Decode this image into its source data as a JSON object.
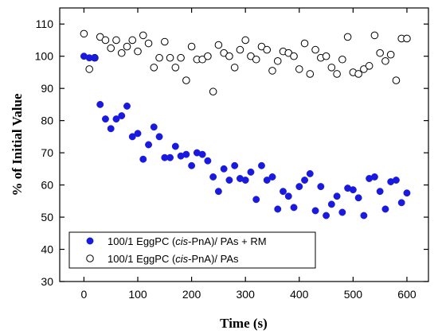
{
  "chart_data": {
    "type": "scatter",
    "xlabel": "Time (s)",
    "ylabel": "% of Initial Value",
    "xlim": [
      -45,
      640
    ],
    "ylim": [
      30,
      115
    ],
    "xticks": [
      0,
      100,
      200,
      300,
      400,
      500,
      600
    ],
    "yticks": [
      30,
      40,
      50,
      60,
      70,
      80,
      90,
      100,
      110
    ],
    "grid": false,
    "legend_position": "bottom-left",
    "series": [
      {
        "name_prefix": "100/1 EggPC (",
        "name_italic": "cis",
        "name_suffix": "-PnA)/ PAs + RM",
        "marker": "filled-circle",
        "color": "#1a1adf",
        "x": [
          0,
          10,
          20,
          30,
          40,
          50,
          60,
          70,
          80,
          90,
          100,
          110,
          120,
          130,
          140,
          150,
          160,
          170,
          180,
          190,
          200,
          210,
          220,
          230,
          240,
          250,
          260,
          270,
          280,
          290,
          300,
          310,
          320,
          330,
          340,
          350,
          360,
          370,
          380,
          390,
          400,
          410,
          420,
          430,
          440,
          450,
          460,
          470,
          480,
          490,
          500,
          510,
          520,
          530,
          540,
          550,
          560,
          570,
          580,
          590,
          600
        ],
        "y": [
          100,
          99.5,
          99.5,
          85,
          80.5,
          77.5,
          80.5,
          81.5,
          84.5,
          75,
          76,
          68,
          72.5,
          78,
          75,
          68.5,
          68.5,
          72,
          69,
          69.5,
          66,
          70,
          69.5,
          67.5,
          62.5,
          58,
          65,
          61.5,
          66,
          62,
          61.5,
          64,
          55.5,
          66,
          61.5,
          62.5,
          52.5,
          58,
          56.5,
          53,
          59.5,
          61.5,
          63.5,
          52,
          59.5,
          50.5,
          54,
          56.5,
          51.5,
          59,
          58.5,
          56,
          50.5,
          62,
          62.5,
          58,
          52.5,
          61,
          61.5,
          54.5,
          57.5
        ]
      },
      {
        "name_prefix": "100/1 EggPC (",
        "name_italic": "cis",
        "name_suffix": "-PnA)/ PAs",
        "marker": "open-circle",
        "color": "#000000",
        "x": [
          0,
          10,
          20,
          30,
          40,
          50,
          60,
          70,
          80,
          90,
          100,
          110,
          120,
          130,
          140,
          150,
          160,
          170,
          180,
          190,
          200,
          210,
          220,
          230,
          240,
          250,
          260,
          270,
          280,
          290,
          300,
          310,
          320,
          330,
          340,
          350,
          360,
          370,
          380,
          390,
          400,
          410,
          420,
          430,
          440,
          450,
          460,
          470,
          480,
          490,
          500,
          510,
          520,
          530,
          540,
          550,
          560,
          570,
          580,
          590,
          600
        ],
        "y": [
          107,
          96,
          99.5,
          106,
          105,
          102.5,
          105,
          101,
          103,
          105,
          101.5,
          106.5,
          104,
          96.5,
          99.5,
          104.5,
          99.5,
          96.5,
          99.5,
          92.5,
          103,
          99,
          99,
          100,
          89,
          103.5,
          101,
          100,
          96.5,
          102,
          105,
          100,
          99,
          103,
          102,
          95.5,
          98.5,
          101.5,
          101,
          100,
          96,
          104,
          94.5,
          102,
          99.5,
          100,
          96.5,
          94.5,
          99,
          106,
          95,
          94.5,
          96,
          97,
          106.5,
          101,
          98.5,
          100.5,
          92.5,
          105.5,
          105.5
        ]
      }
    ]
  }
}
